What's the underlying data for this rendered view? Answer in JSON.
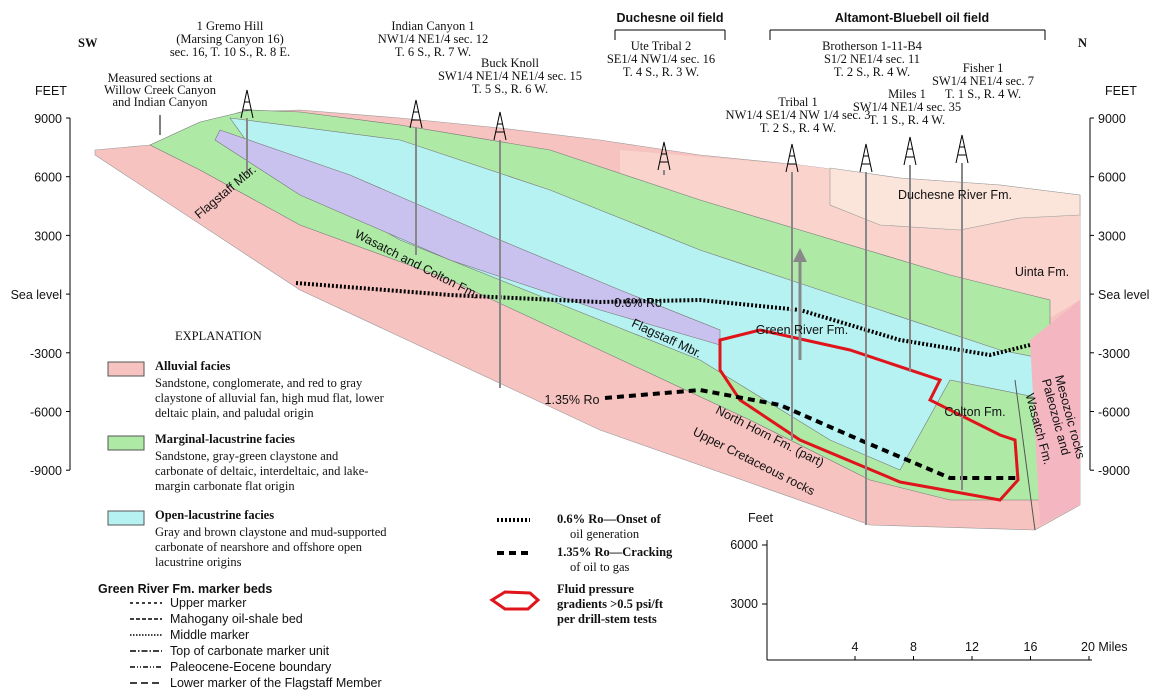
{
  "orientation": {
    "left": "SW",
    "right": "N"
  },
  "axis": {
    "unit": "FEET",
    "labels": [
      "9000",
      "6000",
      "3000",
      "Sea level",
      "-3000",
      "-6000",
      "-9000"
    ]
  },
  "fields": [
    "Duchesne oil field",
    "Altamont-Bluebell oil field"
  ],
  "measured_sections": [
    "Measured sections at",
    "Willow Creek Canyon",
    "and Indian Canyon"
  ],
  "wells": [
    {
      "lines": [
        "1 Gremo Hill",
        "(Marsing Canyon 16)",
        "sec. 16, T. 10 S., R. 8 E."
      ]
    },
    {
      "lines": [
        "Indian Canyon 1",
        "NW1/4 NE1/4 sec. 12",
        "T. 6 S., R. 7 W."
      ]
    },
    {
      "lines": [
        "Buck Knoll",
        "SW1/4 NE1/4 NE1/4 sec. 15",
        "T. 5 S., R. 6 W."
      ]
    },
    {
      "lines": [
        "Ute Tribal 2",
        "SE1/4 NW1/4 sec. 16",
        "T. 4 S., R. 3 W."
      ]
    },
    {
      "lines": [
        "Tribal 1",
        "NW1/4 SE1/4 NW 1/4 sec. 3",
        "T. 2 S., R. 4 W."
      ]
    },
    {
      "lines": [
        "Brotherson 1-11-B4",
        "S1/2 NE1/4 sec. 11",
        "T. 2 S., R. 4 W."
      ]
    },
    {
      "lines": [
        "Miles 1",
        "SW1/4 NE1/4 sec. 35",
        "T. 1 S., R. 4 W."
      ]
    },
    {
      "lines": [
        "Fisher 1",
        "SW1/4 NE1/4 sec. 7",
        "T. 1 S., R. 4 W."
      ]
    }
  ],
  "units": [
    "Flagstaff Mbr.",
    "Wasatch and Colton Fm.",
    "0.6% Ro",
    "Green River Fm.",
    "Flagstaff Mbr.",
    "1.35% Ro",
    "North Horn Fm. (part)",
    "Upper Cretaceous rocks",
    "Colton Fm.",
    "Wasatch Fm.",
    "Paleozoic and",
    "Mesozoic rocks",
    "Duchesne River Fm.",
    "Uinta Fm."
  ],
  "explanation": {
    "title": "EXPLANATION",
    "facies": [
      {
        "name": "Alluvial facies",
        "description": [
          "Sandstone, conglomerate, and red to gray",
          "claystone of alluvial fan, high mud flat, lower",
          "deltaic plain, and paludal origin"
        ]
      },
      {
        "name": "Marginal-lacustrine facies",
        "description": [
          "Sandstone, gray-green claystone and",
          "carbonate of deltaic, interdeltaic, and lake-",
          "margin carbonate flat origin"
        ]
      },
      {
        "name": "Open-lacustrine facies",
        "description": [
          "Gray and brown claystone and mud-supported",
          "carbonate of nearshore and offshore open",
          "lacustrine origins"
        ]
      }
    ],
    "markers": {
      "title": "Green River Fm. marker beds",
      "items": [
        "Upper marker",
        "Mahogany oil-shale bed",
        "Middle marker",
        "Top of carbonate marker unit",
        "Paleocene-Eocene boundary",
        "Lower marker of the Flagstaff Member"
      ]
    },
    "ro": [
      {
        "lines": [
          "0.6% Ro—Onset of",
          "oil generation"
        ]
      },
      {
        "lines": [
          "1.35% Ro—Cracking",
          "of oil to gas"
        ]
      }
    ],
    "fluid": [
      "Fluid pressure",
      "gradients >0.5 psi/ft",
      "per drill-stem tests"
    ]
  },
  "scale": {
    "unit": "Feet",
    "vertical": [
      "6000",
      "3000"
    ],
    "horizontal": [
      "4",
      "8",
      "12",
      "16",
      "20 Miles"
    ]
  }
}
